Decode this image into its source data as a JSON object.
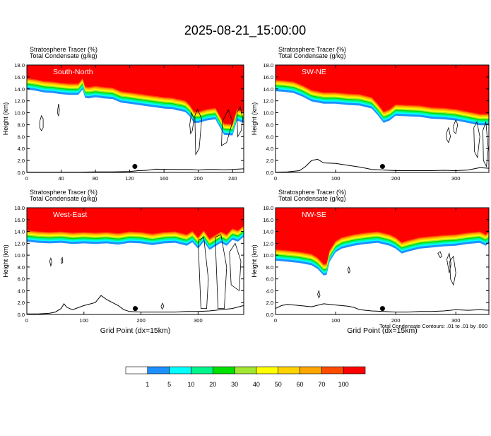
{
  "title": "2025-08-21_15:00:00",
  "footnote": "Total Condensate Contours: .01 to .01 by .000",
  "colors": {
    "levels": [
      "#ffffff",
      "#1e90ff",
      "#00ffff",
      "#00f58c",
      "#00e100",
      "#a0e632",
      "#ffff00",
      "#ffd200",
      "#ffa500",
      "#ff4b00",
      "#ff0000"
    ],
    "tracer_fill": "#ff0000",
    "contour": "#000000",
    "marker": "#000000"
  },
  "colorbar": {
    "tick_labels": [
      "1",
      "5",
      "10",
      "20",
      "30",
      "40",
      "50",
      "60",
      "70",
      "100"
    ]
  },
  "chart_data": [
    {
      "type": "heatmap",
      "name": "South-North",
      "header_line1": "Stratosphere Tracer   (%)",
      "header_line2": "Total Condensate   (g/kg)",
      "label": "South-North",
      "ylabel": "Height (km)",
      "xlabel": "",
      "xlim": [
        0,
        253
      ],
      "ylim": [
        0,
        18
      ],
      "xticks": [
        "0",
        "40",
        "80",
        "120",
        "160",
        "200",
        "240"
      ],
      "xtick_values": [
        0,
        40,
        80,
        120,
        160,
        200,
        240
      ],
      "yticks": [
        "0.0",
        "2.0",
        "4.0",
        "6.0",
        "8.0",
        "10.0",
        "12.0",
        "14.0",
        "16.0",
        "18.0"
      ],
      "tracer_boundary_km": {
        "x": [
          0,
          10,
          20,
          30,
          40,
          50,
          60,
          65,
          68,
          72,
          80,
          90,
          100,
          110,
          120,
          130,
          140,
          150,
          160,
          170,
          175,
          180,
          185,
          190,
          195,
          200,
          210,
          220,
          230,
          240,
          245,
          253
        ],
        "y": [
          15.8,
          15.6,
          15.3,
          15.2,
          15.0,
          14.9,
          14.9,
          15.8,
          14.4,
          14.3,
          14.5,
          14.3,
          14.2,
          13.6,
          13.4,
          13.2,
          13.0,
          12.8,
          12.6,
          12.5,
          12.3,
          12.2,
          12.0,
          11.3,
          10.2,
          10.2,
          10.6,
          10.8,
          8.2,
          8.1,
          10.6,
          10.2
        ]
      },
      "terrain_km": {
        "x": [
          0,
          20,
          40,
          60,
          80,
          100,
          120,
          130,
          140,
          150,
          170,
          190,
          200,
          210,
          220,
          230,
          240,
          253
        ],
        "y": [
          0.05,
          0.05,
          0.05,
          0.05,
          0.08,
          0.1,
          0.15,
          0.3,
          0.35,
          0.55,
          0.5,
          0.5,
          0.4,
          0.5,
          0.5,
          0.45,
          0.5,
          0.6
        ]
      },
      "contours": [
        {
          "x": [
            15,
            17,
            19,
            19,
            17,
            15,
            15
          ],
          "y": [
            8.5,
            9.5,
            9.0,
            7.5,
            7.0,
            7.5,
            8.5
          ]
        },
        {
          "x": [
            36,
            37,
            38,
            37,
            36,
            36
          ],
          "y": [
            10.5,
            11.5,
            10.5,
            9.5,
            9.8,
            10.5
          ]
        },
        {
          "x": [
            190,
            192,
            195,
            193,
            191,
            190
          ],
          "y": [
            8.0,
            10.0,
            9.0,
            7.0,
            6.5,
            8.0
          ]
        },
        {
          "x": [
            196,
            199,
            204,
            201,
            197,
            196
          ],
          "y": [
            9.5,
            10.6,
            9.0,
            4.0,
            3.0,
            9.5
          ]
        },
        {
          "x": [
            228,
            235,
            240,
            233,
            227,
            228
          ],
          "y": [
            8.5,
            10.5,
            8.5,
            5.0,
            4.5,
            8.5
          ]
        },
        {
          "x": [
            245,
            249,
            252,
            250,
            246,
            245
          ],
          "y": [
            10.0,
            11.0,
            9.0,
            7.0,
            6.0,
            10.0
          ]
        }
      ],
      "marker": {
        "x": 126,
        "y": 1.0
      }
    },
    {
      "type": "heatmap",
      "name": "SW-NE",
      "header_line1": "Stratosphere Tracer   (%)",
      "header_line2": "Total Condensate   (g/kg)",
      "label": "SW-NE",
      "ylabel": "Height (km)",
      "xlabel": "",
      "xlim": [
        0,
        355
      ],
      "ylim": [
        0,
        18
      ],
      "xticks": [
        "0",
        "100",
        "200",
        "300"
      ],
      "xtick_values": [
        0,
        100,
        200,
        300
      ],
      "yticks": [
        "0.0",
        "2.0",
        "4.0",
        "6.0",
        "8.0",
        "10.0",
        "12.0",
        "14.0",
        "16.0",
        "18.0"
      ],
      "tracer_boundary_km": {
        "x": [
          0,
          15,
          30,
          45,
          60,
          80,
          100,
          120,
          140,
          160,
          170,
          180,
          190,
          200,
          220,
          240,
          260,
          280,
          300,
          320,
          340,
          355
        ],
        "y": [
          15.5,
          15.4,
          15.2,
          14.6,
          13.8,
          13.4,
          13.4,
          13.2,
          13.1,
          12.6,
          11.5,
          10.2,
          10.6,
          11.4,
          11.3,
          11.2,
          10.9,
          10.8,
          10.6,
          10.2,
          9.8,
          9.8
        ]
      },
      "terrain_km": {
        "x": [
          0,
          20,
          40,
          50,
          60,
          70,
          80,
          100,
          120,
          140,
          160,
          180,
          200,
          220,
          240,
          260,
          280,
          300,
          320,
          340,
          355
        ],
        "y": [
          0.05,
          0.1,
          0.3,
          1.0,
          2.0,
          2.2,
          1.6,
          1.5,
          1.2,
          0.9,
          0.5,
          0.4,
          0.3,
          0.3,
          0.3,
          0.3,
          0.35,
          0.3,
          0.4,
          0.8,
          0.7
        ]
      },
      "contours": [
        {
          "x": [
            284,
            288,
            291,
            288,
            285,
            284
          ],
          "y": [
            6.5,
            7.5,
            6.0,
            5.0,
            5.5,
            6.5
          ]
        },
        {
          "x": [
            296,
            300,
            303,
            300,
            297,
            296
          ],
          "y": [
            7.8,
            8.8,
            8.0,
            6.5,
            6.8,
            7.8
          ]
        },
        {
          "x": [
            330,
            335,
            340,
            336,
            331,
            330
          ],
          "y": [
            7.5,
            8.5,
            6.0,
            2.5,
            3.5,
            7.5
          ]
        },
        {
          "x": [
            345,
            350,
            354,
            351,
            346,
            345
          ],
          "y": [
            7.0,
            8.5,
            4.0,
            1.0,
            2.0,
            7.0
          ]
        }
      ],
      "marker": {
        "x": 178,
        "y": 1.0
      }
    },
    {
      "type": "heatmap",
      "name": "West-East",
      "header_line1": "Stratosphere Tracer   (%)",
      "header_line2": "Total Condensate   (g/kg)",
      "label": "West-East",
      "ylabel": "Height (km)",
      "xlabel": "Grid Point (dx=15km)",
      "xlim": [
        0,
        380
      ],
      "ylim": [
        0,
        18
      ],
      "xticks": [
        "0",
        "100",
        "200",
        "300"
      ],
      "xtick_values": [
        0,
        100,
        200,
        300
      ],
      "yticks": [
        "0.0",
        "2.0",
        "4.0",
        "6.0",
        "8.0",
        "10.0",
        "12.0",
        "14.0",
        "16.0",
        "18.0"
      ],
      "tracer_boundary_km": {
        "x": [
          0,
          20,
          40,
          60,
          80,
          100,
          120,
          140,
          160,
          180,
          200,
          220,
          240,
          260,
          280,
          290,
          300,
          310,
          320,
          330,
          340,
          350,
          360,
          370,
          380
        ],
        "y": [
          14.2,
          14.0,
          13.9,
          14.0,
          13.8,
          13.9,
          13.8,
          13.9,
          13.7,
          14.0,
          13.9,
          13.6,
          13.9,
          14.0,
          13.5,
          14.1,
          13.0,
          14.2,
          12.8,
          13.4,
          14.0,
          13.5,
          14.5,
          14.2,
          15.0
        ]
      },
      "terrain_km": {
        "x": [
          0,
          20,
          40,
          50,
          60,
          65,
          70,
          80,
          100,
          120,
          130,
          140,
          150,
          160,
          170,
          180,
          200,
          220,
          240,
          260,
          280,
          300,
          320,
          340,
          360,
          380
        ],
        "y": [
          0.1,
          0.1,
          0.2,
          0.4,
          1.0,
          1.8,
          1.2,
          0.8,
          1.5,
          2.0,
          3.2,
          2.5,
          2.0,
          1.5,
          0.8,
          0.5,
          0.4,
          0.4,
          0.4,
          0.4,
          0.5,
          0.5,
          0.6,
          0.8,
          1.0,
          1.5
        ]
      },
      "contours": [
        {
          "x": [
            40,
            42,
            44,
            42,
            40
          ],
          "y": [
            9.0,
            9.5,
            8.8,
            8.2,
            9.0
          ]
        },
        {
          "x": [
            60,
            62,
            63,
            61,
            60
          ],
          "y": [
            9.2,
            9.6,
            8.8,
            8.6,
            9.2
          ]
        },
        {
          "x": [
            235,
            238,
            240,
            237,
            235
          ],
          "y": [
            1.4,
            1.9,
            1.3,
            0.9,
            1.4
          ]
        },
        {
          "x": [
            300,
            310,
            318,
            315,
            305,
            300
          ],
          "y": [
            12.5,
            13.0,
            6.0,
            1.0,
            1.0,
            12.5
          ]
        },
        {
          "x": [
            330,
            340,
            350,
            346,
            335,
            330
          ],
          "y": [
            13.0,
            13.5,
            8.0,
            1.0,
            1.0,
            13.0
          ]
        },
        {
          "x": [
            355,
            365,
            375,
            372,
            358,
            355
          ],
          "y": [
            10.5,
            12.0,
            9.0,
            4.0,
            5.0,
            10.5
          ]
        }
      ],
      "marker": {
        "x": 190,
        "y": 1.0
      }
    },
    {
      "type": "heatmap",
      "name": "NW-SE",
      "header_line1": "Stratosphere Tracer   (%)",
      "header_line2": "Total Condensate   (g/kg)",
      "label": "NW-SE",
      "ylabel": "Height (km)",
      "xlabel": "Grid Point (dx=15km)",
      "xlim": [
        0,
        355
      ],
      "ylim": [
        0,
        18
      ],
      "xticks": [
        "0",
        "100",
        "200",
        "300"
      ],
      "xtick_values": [
        0,
        100,
        200,
        300
      ],
      "yticks": [
        "0.0",
        "2.0",
        "4.0",
        "6.0",
        "8.0",
        "10.0",
        "12.0",
        "14.0",
        "16.0",
        "18.0"
      ],
      "tracer_boundary_km": {
        "x": [
          0,
          20,
          40,
          60,
          70,
          80,
          85,
          90,
          100,
          110,
          130,
          150,
          170,
          190,
          200,
          210,
          220,
          240,
          260,
          280,
          300,
          320,
          340,
          350,
          355
        ],
        "y": [
          11.0,
          10.8,
          10.6,
          10.2,
          9.6,
          8.5,
          8.6,
          10.8,
          12.4,
          13.0,
          13.5,
          13.8,
          14.0,
          13.5,
          13.0,
          12.2,
          12.5,
          13.0,
          13.2,
          13.4,
          13.5,
          13.8,
          14.0,
          13.5,
          14.0
        ]
      },
      "terrain_km": {
        "x": [
          0,
          10,
          20,
          40,
          60,
          80,
          100,
          120,
          130,
          140,
          160,
          180,
          200,
          220,
          240,
          260,
          280,
          300,
          320,
          340,
          355
        ],
        "y": [
          1.0,
          1.5,
          1.7,
          1.5,
          1.3,
          1.8,
          1.6,
          1.4,
          1.2,
          0.8,
          0.6,
          0.5,
          0.4,
          0.4,
          0.5,
          0.5,
          0.6,
          0.8,
          0.7,
          0.8,
          0.7
        ]
      },
      "contours": [
        {
          "x": [
            70,
            72,
            74,
            72,
            70
          ],
          "y": [
            3.4,
            4.0,
            3.2,
            2.8,
            3.4
          ]
        },
        {
          "x": [
            120,
            122,
            124,
            122,
            120
          ],
          "y": [
            7.6,
            8.0,
            7.3,
            7.0,
            7.6
          ]
        },
        {
          "x": [
            270,
            274,
            277,
            274,
            270
          ],
          "y": [
            10.3,
            10.6,
            9.8,
            9.6,
            10.3
          ]
        },
        {
          "x": [
            285,
            289,
            292,
            289,
            285
          ],
          "y": [
            9.3,
            10.3,
            8.5,
            7.0,
            9.3
          ]
        },
        {
          "x": [
            290,
            296,
            300,
            296,
            291,
            290
          ],
          "y": [
            9.0,
            9.8,
            7.0,
            5.0,
            6.0,
            9.0
          ]
        }
      ],
      "marker": {
        "x": 178,
        "y": 1.0
      }
    }
  ]
}
